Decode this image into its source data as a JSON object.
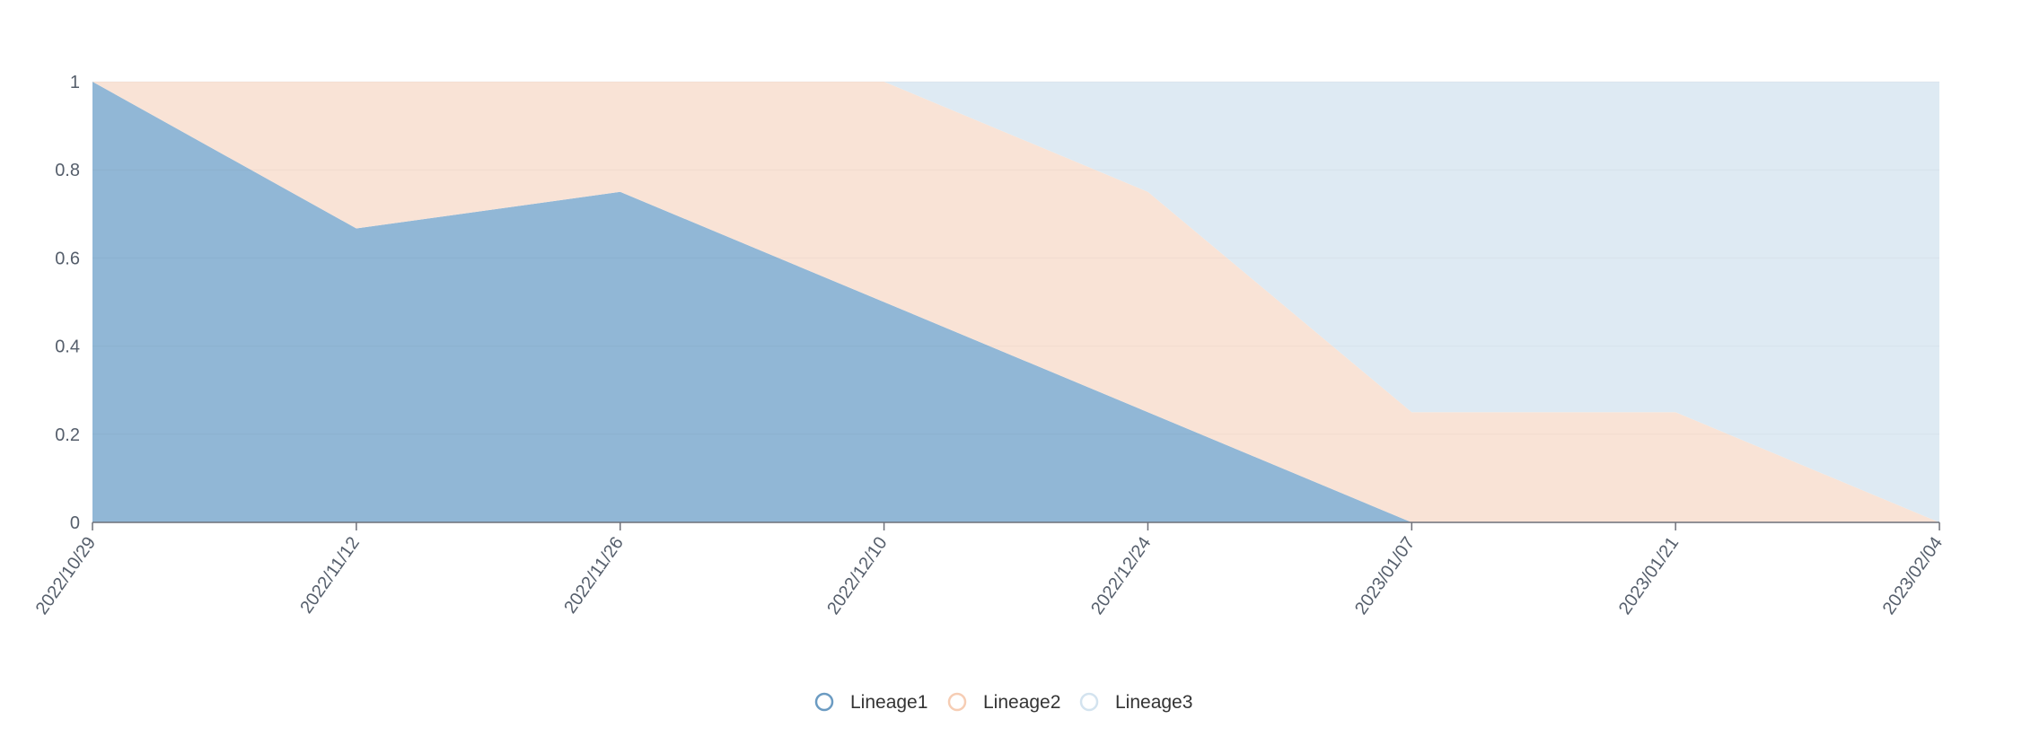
{
  "chart_data": {
    "type": "area",
    "stacked": true,
    "normalized": true,
    "x": [
      "2022/10/29",
      "2022/11/12",
      "2022/11/26",
      "2022/12/10",
      "2022/12/24",
      "2023/01/07",
      "2023/01/21",
      "2023/02/04"
    ],
    "series": [
      {
        "name": "Lineage1",
        "color": "#91b7d6",
        "stroke": "#6b9bc2",
        "values": [
          1,
          0.667,
          0.75,
          0.5,
          0.25,
          0,
          0,
          0
        ]
      },
      {
        "name": "Lineage2",
        "color": "#f9e3d6",
        "stroke": "#f6cdb4",
        "values": [
          0,
          0.333,
          0.25,
          0.5,
          0.5,
          0.25,
          0.25,
          0
        ]
      },
      {
        "name": "Lineage3",
        "color": "#deeaf3",
        "stroke": "#d3e3ef",
        "values": [
          0,
          0,
          0,
          0,
          0.25,
          0.75,
          0.75,
          1
        ]
      }
    ],
    "yticks": [
      "0",
      "0.2",
      "0.4",
      "0.6",
      "0.8",
      "1"
    ],
    "ylim": [
      0,
      1
    ],
    "title": "",
    "xlabel": "",
    "ylabel": "",
    "grid": true,
    "legend": "bottom-center"
  }
}
